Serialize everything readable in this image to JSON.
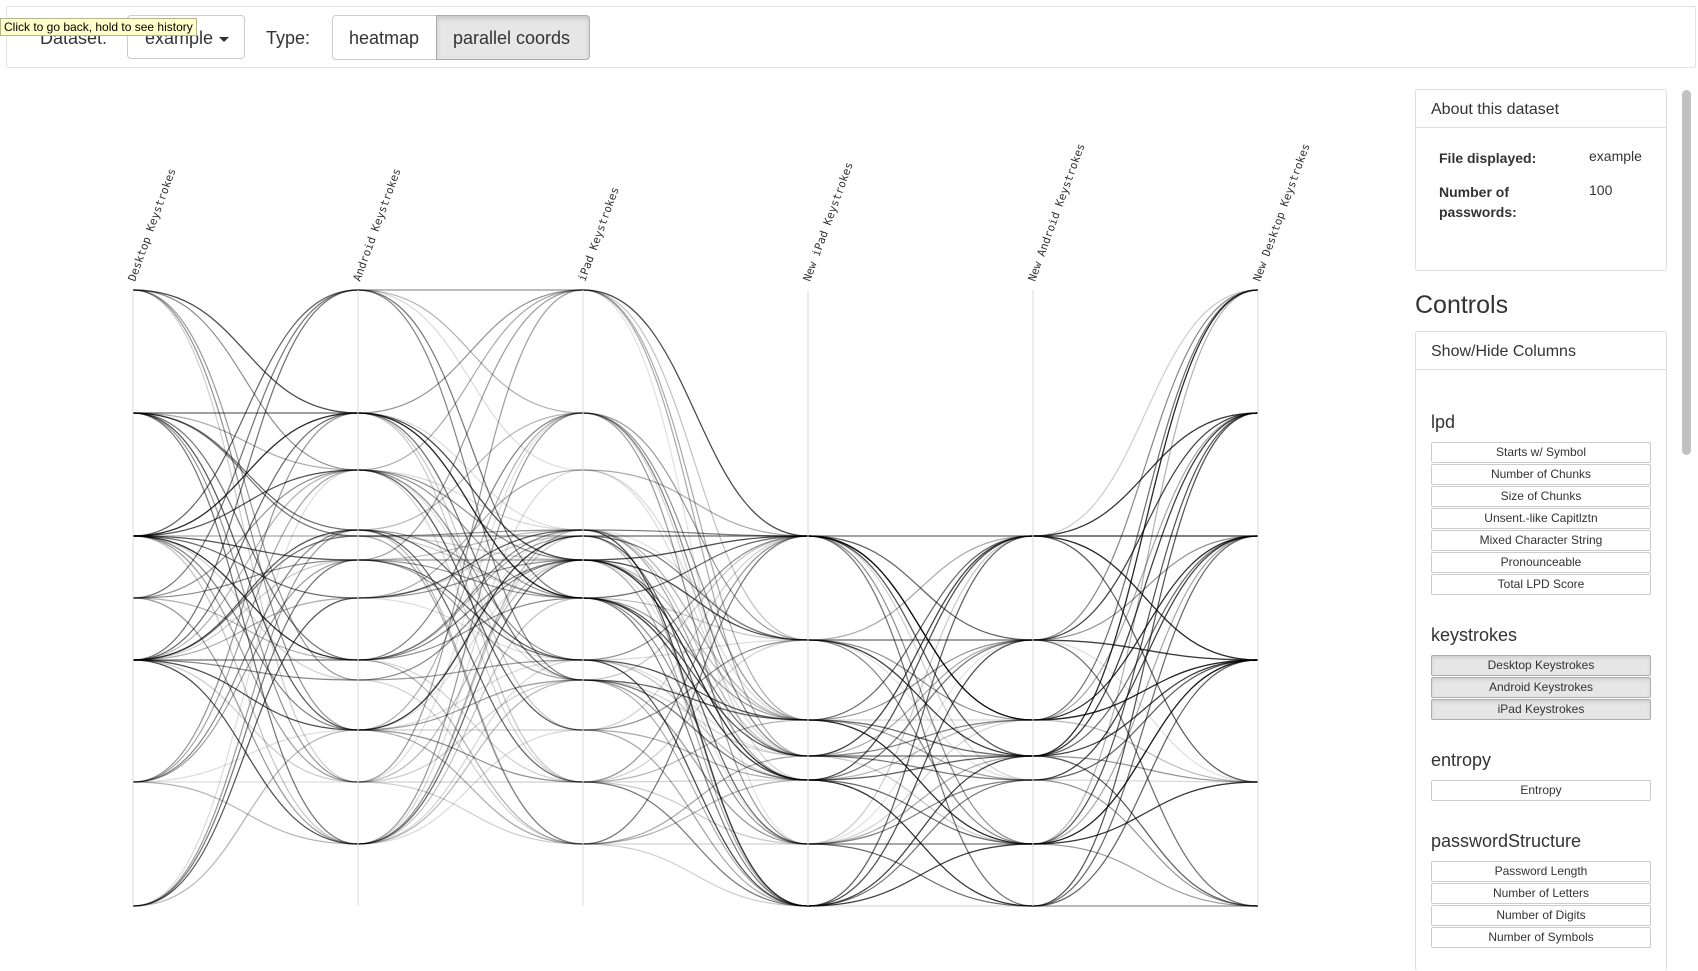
{
  "tooltip": "Click to go back, hold to see history",
  "topbar": {
    "dataset_label": "Dataset:",
    "dataset_value": "example",
    "type_label": "Type:",
    "type_options": [
      "heatmap",
      "parallel coords"
    ],
    "type_active": "parallel coords"
  },
  "chart_data": {
    "type": "parallel-coordinates",
    "axes": [
      "Desktop Keystrokes",
      "Android Keystrokes",
      "iPad Keystrokes",
      "New iPad Keystrokes",
      "New Android Keystrokes",
      "New Desktop Keystrokes"
    ],
    "line_color": "#000000"
  },
  "about": {
    "title": "About this dataset",
    "file_label": "File displayed:",
    "file_value": "example",
    "count_label_1": "Number of",
    "count_label_2": "passwords:",
    "count_value": "100"
  },
  "controls": {
    "title": "Controls",
    "panel_title": "Show/Hide Columns",
    "groups": [
      {
        "name": "lpd",
        "items": [
          "Starts w/ Symbol",
          "Number of Chunks",
          "Size of Chunks",
          "Unsent.-like Capitlztn",
          "Mixed Character String",
          "Pronounceable",
          "Total LPD Score"
        ]
      },
      {
        "name": "keystrokes",
        "items": [
          "Desktop Keystrokes",
          "Android Keystrokes",
          "iPad Keystrokes"
        ]
      },
      {
        "name": "entropy",
        "items": [
          "Entropy"
        ]
      },
      {
        "name": "passwordStructure",
        "items": [
          "Password Length",
          "Number of Letters",
          "Number of Digits",
          "Number of Symbols"
        ]
      }
    ]
  }
}
